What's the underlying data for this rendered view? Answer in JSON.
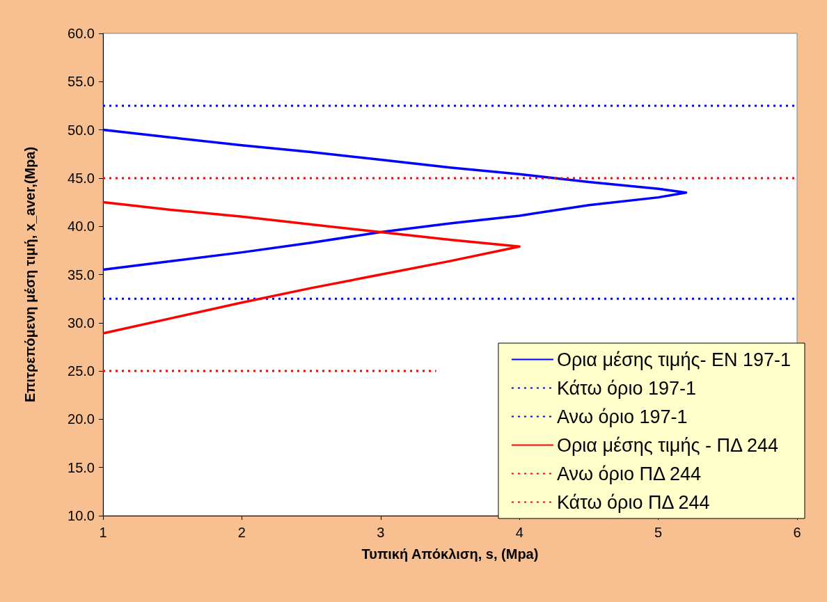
{
  "chart_data": {
    "type": "line",
    "xlabel": "Τυπική Απόκλιση, s, (Mpa)",
    "ylabel": "Επιτρεπόμενη μέση τιμή, x_aver,(Mpa)",
    "xlim": [
      1,
      6
    ],
    "xticks": [
      1,
      2,
      3,
      4,
      5,
      6
    ],
    "ylim": [
      10,
      60
    ],
    "yticks": [
      {
        "value": 10,
        "label": "10.0"
      },
      {
        "value": 15,
        "label": "15.0"
      },
      {
        "value": 20,
        "label": "20.0"
      },
      {
        "value": 25,
        "label": "25.0"
      },
      {
        "value": 30,
        "label": "30.0"
      },
      {
        "value": 35,
        "label": "35.0"
      },
      {
        "value": 40,
        "label": "40.0"
      },
      {
        "value": 45,
        "label": "45.0"
      },
      {
        "value": 50,
        "label": "50.0"
      },
      {
        "value": 55,
        "label": "55.0"
      },
      {
        "value": 60,
        "label": "60.0"
      }
    ],
    "grid": false,
    "legend": "bottom right",
    "marker": "none",
    "series": [
      {
        "name": "Ορια μέσης τιμής- EN 197-1",
        "color": "#0000ff",
        "line_style": "solid",
        "x": [
          1,
          1.5,
          2,
          2.5,
          3,
          3.5,
          4,
          4.5,
          5,
          5.2,
          5,
          4.5,
          4,
          3.5,
          3,
          2.5,
          2,
          1.5,
          1
        ],
        "values": [
          50,
          49.2,
          48.4,
          47.7,
          46.9,
          46.1,
          45.4,
          44.6,
          43.9,
          43.5,
          43,
          42.2,
          41.1,
          40.3,
          39.4,
          38.3,
          37.3,
          36.4,
          35.5
        ]
      },
      {
        "name": "Κάτω όριο 197-1",
        "color": "#0000ff",
        "line_style": "dotted",
        "x": [
          1,
          6
        ],
        "values": [
          32.5,
          32.5
        ]
      },
      {
        "name": "Ανω όριο 197-1",
        "color": "#0000ff",
        "line_style": "dotted",
        "x": [
          1,
          6
        ],
        "values": [
          52.5,
          52.5
        ]
      },
      {
        "name": "Ορια μέσης τιμής - ΠΔ 244",
        "color": "#ff0000",
        "line_style": "solid",
        "x": [
          1,
          1.5,
          2,
          2.5,
          3,
          3.5,
          4,
          3.5,
          3,
          2.5,
          2,
          1.5,
          1
        ],
        "values": [
          42.5,
          41.7,
          41,
          40.2,
          39.4,
          38.6,
          37.9,
          36.4,
          35,
          33.6,
          32.1,
          30.5,
          28.9
        ]
      },
      {
        "name": "Ανω όριο ΠΔ 244",
        "color": "#ff0000",
        "line_style": "dotted",
        "x": [
          1,
          6
        ],
        "values": [
          45,
          45
        ]
      },
      {
        "name": "Κάτω όριο ΠΔ 244",
        "color": "#ff0000",
        "line_style": "dotted",
        "x": [
          1,
          3.4
        ],
        "values": [
          25,
          25
        ]
      }
    ]
  }
}
